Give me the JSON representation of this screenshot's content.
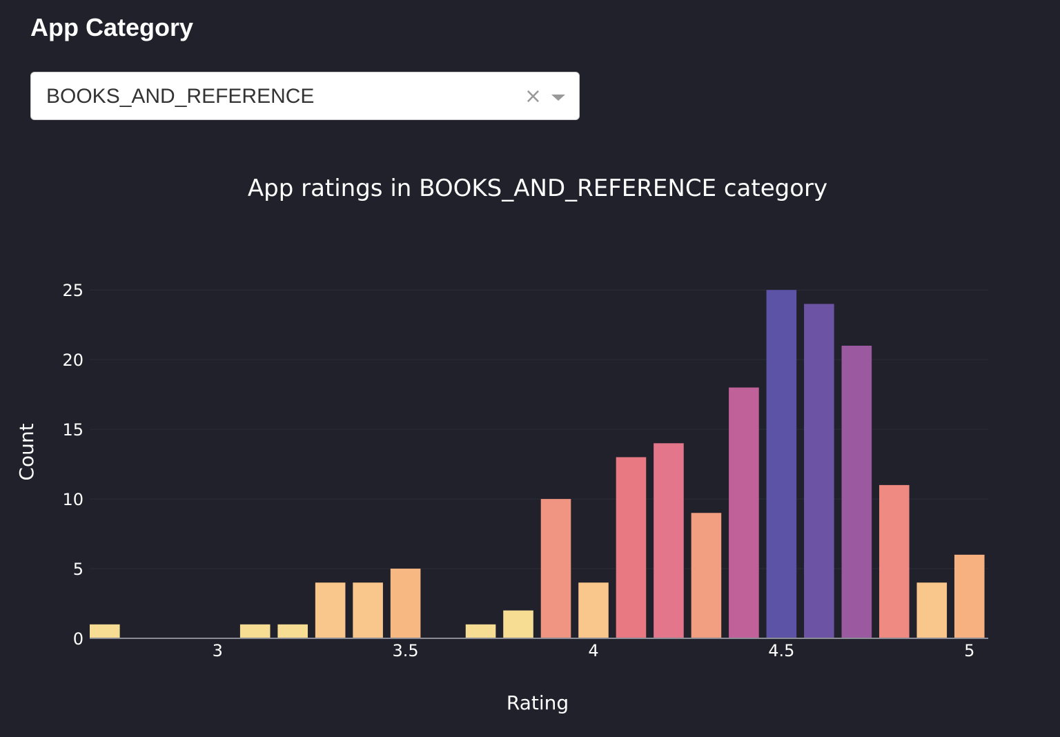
{
  "filter": {
    "heading": "App Category",
    "selected": "BOOKS_AND_REFERENCE",
    "clear_symbol": "×"
  },
  "chart_data": {
    "type": "bar",
    "title": "App ratings in BOOKS_AND_REFERENCE category",
    "xlabel": "Rating",
    "ylabel": "Count",
    "xlim": [
      2.66,
      5.05
    ],
    "ylim": [
      0,
      26
    ],
    "xticks": [
      "3",
      "3.5",
      "4",
      "4.5",
      "5"
    ],
    "yticks": [
      "0",
      "5",
      "10",
      "15",
      "20",
      "25"
    ],
    "bar_width": 0.08,
    "grid": true,
    "legend": "none",
    "x": [
      2.7,
      3.1,
      3.2,
      3.3,
      3.4,
      3.5,
      3.7,
      3.8,
      3.9,
      4.0,
      4.1,
      4.2,
      4.3,
      4.4,
      4.5,
      4.6,
      4.7,
      4.8,
      4.9,
      5.0
    ],
    "values": [
      1,
      1,
      1,
      4,
      4,
      5,
      1,
      2,
      10,
      4,
      13,
      14,
      9,
      18,
      25,
      24,
      21,
      11,
      4,
      6
    ],
    "colors": [
      "#f6dd93",
      "#f6dd93",
      "#f6dd93",
      "#f9c68b",
      "#f9c68b",
      "#f8b882",
      "#f6dd93",
      "#f6dd93",
      "#ef9581",
      "#f9c68b",
      "#e87881",
      "#e3768a",
      "#f29e80",
      "#c1619a",
      "#5c52a6",
      "#6c53a3",
      "#9b5aa0",
      "#ee8a82",
      "#f9c68b",
      "#f7b080"
    ]
  }
}
